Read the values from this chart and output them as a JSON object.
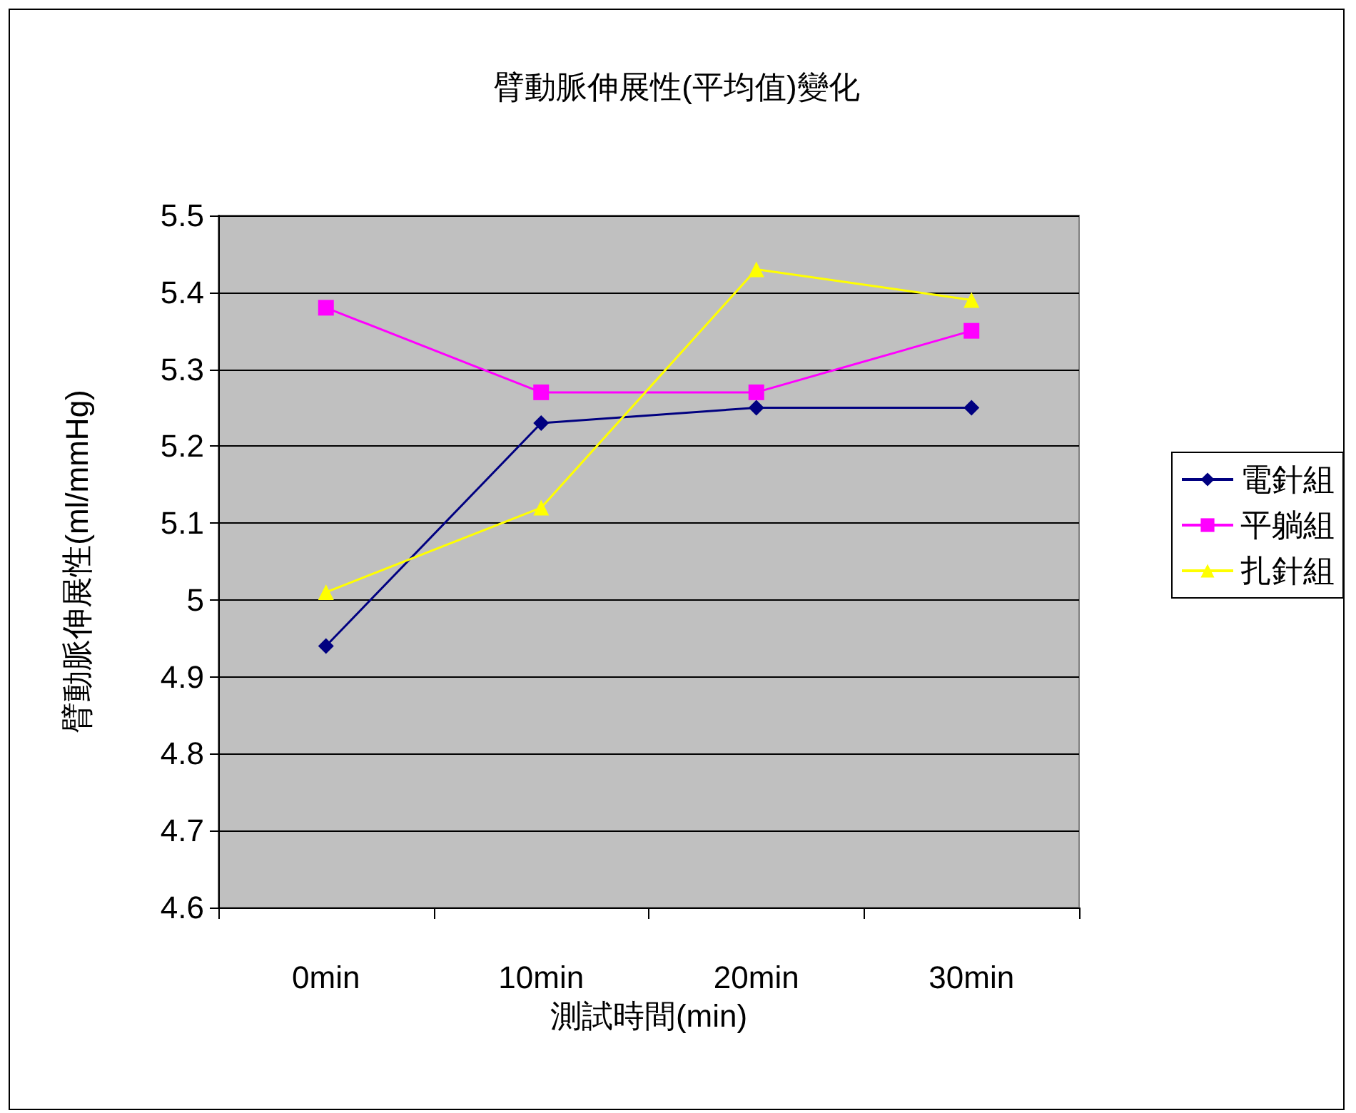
{
  "chart_data": {
    "type": "line",
    "title": "臂動脈伸展性(平均值)變化",
    "xlabel": "測試時間(min)",
    "ylabel": "臂動脈伸展性(ml/mmHg)",
    "categories": [
      "0min",
      "10min",
      "20min",
      "30min"
    ],
    "series": [
      {
        "name": "電針組",
        "color": "#000080",
        "marker": "diamond",
        "values": [
          4.94,
          5.23,
          5.25,
          5.25
        ]
      },
      {
        "name": "平躺組",
        "color": "#ff00ff",
        "marker": "square",
        "values": [
          5.38,
          5.27,
          5.27,
          5.35
        ]
      },
      {
        "name": "扎針組",
        "color": "#ffff00",
        "marker": "triangle",
        "values": [
          5.01,
          5.12,
          5.43,
          5.39
        ]
      }
    ],
    "ylim": [
      4.6,
      5.5
    ],
    "yticks": [
      4.6,
      4.7,
      4.8,
      4.9,
      5,
      5.1,
      5.2,
      5.3,
      5.4,
      5.5
    ],
    "grid": "y",
    "legend": "right"
  }
}
